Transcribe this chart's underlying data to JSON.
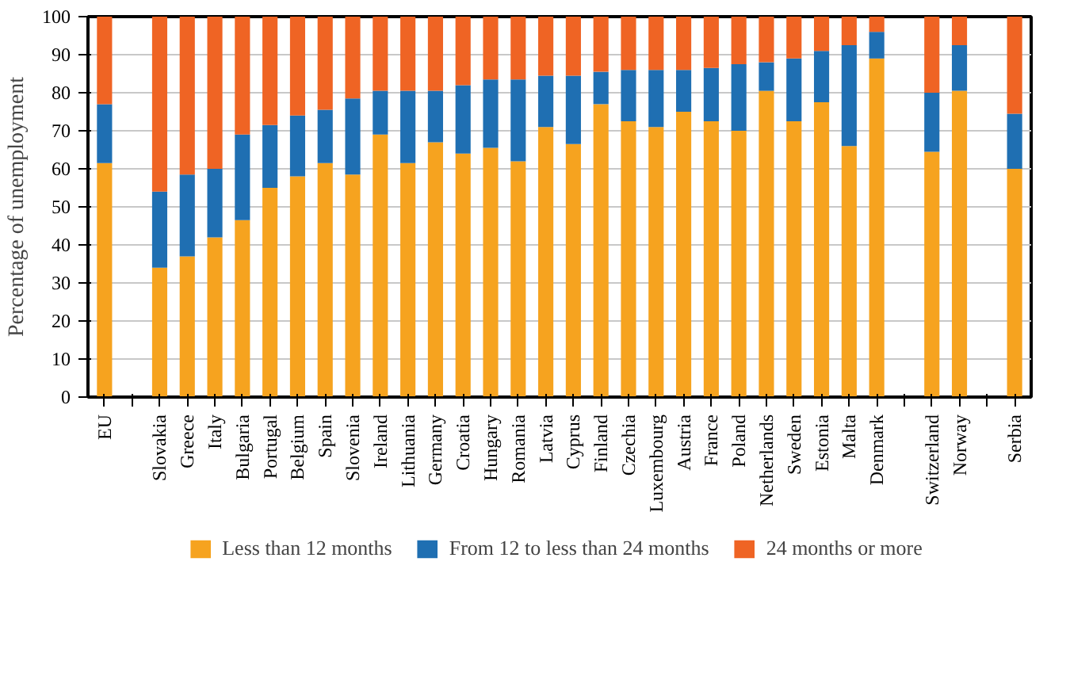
{
  "chart_data": {
    "type": "bar",
    "stacked": true,
    "ylabel": "Percentage of unemployment",
    "categories": [
      "EU",
      null,
      "Slovakia",
      "Greece",
      "Italy",
      "Bulgaria",
      "Portugal",
      "Belgium",
      "Spain",
      "Slovenia",
      "Ireland",
      "Lithuania",
      "Germany",
      "Croatia",
      "Hungary",
      "Romania",
      "Latvia",
      "Cyprus",
      "Finland",
      "Czechia",
      "Luxembourg",
      "Austria",
      "France",
      "Poland",
      "Netherlands",
      "Sweden",
      "Estonia",
      "Malta",
      "Denmark",
      null,
      "Switzerland",
      "Norway",
      null,
      "Serbia"
    ],
    "series": [
      {
        "name": "Less than 12 months",
        "color": "#f6a31f",
        "values": [
          61.5,
          null,
          34,
          37,
          42,
          46.5,
          55,
          58,
          61.5,
          58.5,
          69,
          61.5,
          67,
          64,
          65.5,
          62,
          71,
          66.5,
          77,
          72.5,
          71,
          75,
          72.5,
          70,
          80.5,
          72.5,
          77.5,
          66,
          89,
          null,
          64.5,
          80.5,
          null,
          60
        ]
      },
      {
        "name": "From 12 to less than 24 months",
        "color": "#1f6fb2",
        "values": [
          15.5,
          null,
          20,
          21.5,
          18,
          22.5,
          16.5,
          16,
          14,
          20,
          11.5,
          19,
          13.5,
          18,
          18,
          21.5,
          13.5,
          18,
          8.5,
          13.5,
          15,
          11,
          14,
          17.5,
          7.5,
          16.5,
          13.5,
          26.5,
          7,
          null,
          15.5,
          12,
          null,
          14.5
        ]
      },
      {
        "name": "24 months or more",
        "color": "#ef6424",
        "values": [
          23,
          null,
          46,
          41.5,
          40,
          31,
          28.5,
          26,
          24.5,
          21.5,
          19.5,
          19.5,
          19.5,
          18,
          16.5,
          16.5,
          15.5,
          15.5,
          14.5,
          14,
          14,
          14,
          13.5,
          12.5,
          12,
          11,
          9,
          7.5,
          4,
          null,
          20,
          7.5,
          null,
          25.5
        ]
      }
    ],
    "ylim": [
      0,
      100
    ],
    "yticks": [
      0,
      10,
      20,
      30,
      40,
      50,
      60,
      70,
      80,
      90,
      100
    ],
    "grid": "y",
    "legend": "bottom"
  }
}
